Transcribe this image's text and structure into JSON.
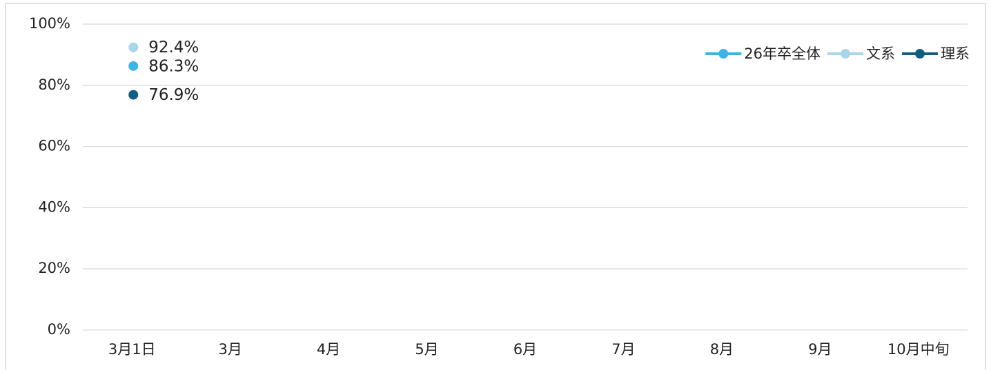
{
  "chart_data": {
    "type": "line",
    "categories": [
      "3月1日",
      "3月",
      "4月",
      "5月",
      "6月",
      "7月",
      "8月",
      "9月",
      "10月中旬"
    ],
    "series": [
      {
        "name": "26年卒全体",
        "color": "#3fb3e3",
        "values": [
          86.3,
          null,
          null,
          null,
          null,
          null,
          null,
          null,
          null
        ],
        "value_labels": [
          "86.3%",
          null,
          null,
          null,
          null,
          null,
          null,
          null,
          null
        ]
      },
      {
        "name": "文系",
        "color": "#a9d6e8",
        "values": [
          92.4,
          null,
          null,
          null,
          null,
          null,
          null,
          null,
          null
        ],
        "value_labels": [
          "92.4%",
          null,
          null,
          null,
          null,
          null,
          null,
          null,
          null
        ]
      },
      {
        "name": "理系",
        "color": "#125e80",
        "values": [
          76.9,
          null,
          null,
          null,
          null,
          null,
          null,
          null,
          null
        ],
        "value_labels": [
          "76.9%",
          null,
          null,
          null,
          null,
          null,
          null,
          null,
          null
        ]
      }
    ],
    "ylim": [
      0,
      100
    ],
    "yticks": [
      {
        "value": 0,
        "label": "0%"
      },
      {
        "value": 20,
        "label": "20%"
      },
      {
        "value": 40,
        "label": "40%"
      },
      {
        "value": 60,
        "label": "60%"
      },
      {
        "value": 80,
        "label": "80%"
      },
      {
        "value": 100,
        "label": "100%"
      }
    ],
    "grid": true,
    "legend": "top-right"
  }
}
